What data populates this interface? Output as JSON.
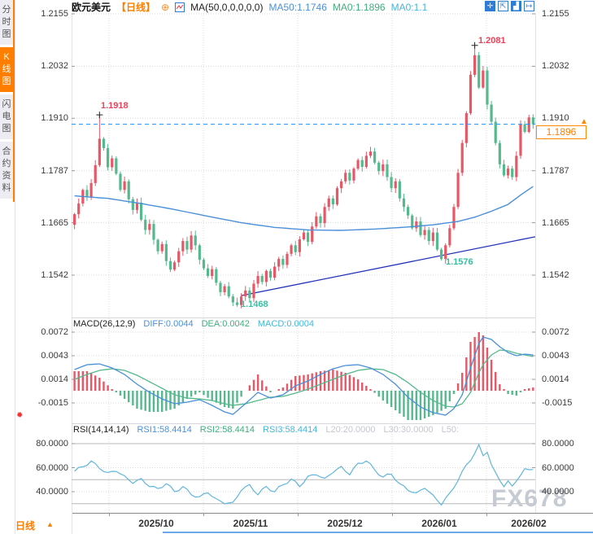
{
  "header": {
    "symbol": "欧元美元",
    "period_tag": "【日线】",
    "ma_label": "MA(50,0,0,0,0,0)",
    "ma50": "MA50:1.1746",
    "ma0_green": "MA0:1.1896",
    "ma0_cyan": "MA0:1.1"
  },
  "sidebar": {
    "items": [
      {
        "label": "分时图",
        "active": false
      },
      {
        "label": "K线图",
        "active": true
      },
      {
        "label": "闪电图",
        "active": false
      },
      {
        "label": "合约资料",
        "active": false
      }
    ]
  },
  "top_icons": [
    {
      "name": "pan-icon",
      "glyph": "✛",
      "style": "fill"
    },
    {
      "name": "zoom-range-icon",
      "glyph": "⇱",
      "style": "line"
    },
    {
      "name": "chart-mode-icon",
      "glyph": "▟",
      "style": "fill"
    },
    {
      "name": "shift-right-icon",
      "glyph": "↦",
      "style": "line"
    }
  ],
  "annotations": {
    "high1": "1.1918",
    "high2": "1.2081",
    "low1": "1.1468",
    "low2": "1.1576"
  },
  "price_badge": "1.1896",
  "macd_header": {
    "title": "MACD(26,12,9)",
    "diff": "DIFF:0.0044",
    "dea": "DEA:0.0042",
    "macd": "MACD:0.0004"
  },
  "rsi_header": {
    "title": "RSI(14,14,14)",
    "rsi1": "RSI1:58.4414",
    "rsi2": "RSI2:58.4414",
    "rsi3": "RSI3:58.4414",
    "l20": "L20:20.0000",
    "l30": "L30:30.0000",
    "l50": "L50:"
  },
  "footer": {
    "period": "日线",
    "arrow": "▲"
  },
  "watermark": "FX678",
  "colors": {
    "up": "#e75766",
    "down": "#54b98c",
    "ma50_line": "#4a90d8",
    "diff_line": "#4a90d8",
    "dea_line": "#54b98c",
    "rsi_line": "#5fb6dc",
    "trendline": "#2233bb",
    "current_price_line": "#1e90ff",
    "accent_orange": "#ff7e00",
    "annotation_red": "#e8435a",
    "annotation_green": "#3cbda0",
    "grid_dotted": "#d8d8d8",
    "level_solid": "#b8b8b8"
  },
  "chart_data": {
    "type": "candlestick",
    "symbol": "EUR/USD 欧元美元",
    "period": "daily",
    "title": "欧元美元 日线",
    "last_price": 1.1896,
    "open_first": 1.166,
    "candles_close": [
      1.1685,
      1.171,
      1.1742,
      1.1725,
      1.1758,
      1.18,
      1.1862,
      1.184,
      1.1795,
      1.1816,
      1.178,
      1.1742,
      1.1762,
      1.172,
      1.1695,
      1.1712,
      1.1672,
      1.1648,
      1.1662,
      1.1625,
      1.1598,
      1.1615,
      1.1575,
      1.1555,
      1.1572,
      1.1598,
      1.1622,
      1.1602,
      1.1635,
      1.1612,
      1.1578,
      1.1558,
      1.154,
      1.1556,
      1.1524,
      1.1502,
      1.1516,
      1.1492,
      1.1478,
      1.1472,
      1.1492,
      1.1506,
      1.1488,
      1.1522,
      1.154,
      1.1526,
      1.1552,
      1.1536,
      1.1562,
      1.158,
      1.1566,
      1.1592,
      1.1612,
      1.1596,
      1.1626,
      1.1642,
      1.162,
      1.1656,
      1.168,
      1.1664,
      1.1702,
      1.1722,
      1.1708,
      1.1746,
      1.1762,
      1.1782,
      1.1764,
      1.1792,
      1.1812,
      1.1796,
      1.1822,
      1.1832,
      1.1806,
      1.1786,
      1.1802,
      1.1772,
      1.1746,
      1.1762,
      1.1722,
      1.1702,
      1.1682,
      1.1652,
      1.1668,
      1.1636,
      1.1648,
      1.1622,
      1.1642,
      1.1602,
      1.158,
      1.1612,
      1.1652,
      1.1702,
      1.1782,
      1.1852,
      1.1922,
      1.2012,
      1.2058,
      1.1982,
      1.2022,
      1.1942,
      1.1902,
      1.1852,
      1.1802,
      1.1776,
      1.1792,
      1.1772,
      1.1822,
      1.1896,
      1.1878,
      1.1912,
      1.1896
    ],
    "extreme_overrides": {
      "6": {
        "high": 1.1918
      },
      "39": {
        "low": 1.1468
      },
      "88": {
        "low": 1.1576
      },
      "96": {
        "high": 1.2081
      }
    },
    "markers": [
      {
        "i": 6,
        "p": 1.1918
      },
      {
        "i": 96,
        "p": 1.2081
      }
    ],
    "price_axis": [
      {
        "label": "1.2155",
        "value": 1.2155
      },
      {
        "label": "1.2032",
        "value": 1.2032
      },
      {
        "label": "1.1910",
        "value": 1.191
      },
      {
        "label": "1.1787",
        "value": 1.1787
      },
      {
        "label": "1.1665",
        "value": 1.1665
      },
      {
        "label": "1.1542",
        "value": 1.1542
      }
    ],
    "ma50_points": [
      [
        0,
        1.1728
      ],
      [
        8,
        1.1722
      ],
      [
        16,
        1.171
      ],
      [
        24,
        1.1696
      ],
      [
        32,
        1.168
      ],
      [
        40,
        1.1665
      ],
      [
        48,
        1.1654
      ],
      [
        56,
        1.1648
      ],
      [
        64,
        1.1647
      ],
      [
        72,
        1.165
      ],
      [
        80,
        1.1655
      ],
      [
        86,
        1.166
      ],
      [
        92,
        1.1668
      ],
      [
        96,
        1.1678
      ],
      [
        100,
        1.1692
      ],
      [
        104,
        1.1708
      ],
      [
        107,
        1.173
      ],
      [
        110,
        1.175
      ]
    ],
    "trendline": {
      "from": [
        40,
        1.1494
      ],
      "to": [
        110,
        1.1632
      ]
    },
    "macd": {
      "axis": [
        {
          "label": "0.0072",
          "value": 0.0072
        },
        {
          "label": "0.0043",
          "value": 0.0043
        },
        {
          "label": "0.0014",
          "value": 0.0014
        },
        {
          "label": "-0.0015",
          "value": -0.0015
        }
      ],
      "diff_points": [
        [
          0,
          0.0026
        ],
        [
          3,
          0.0032
        ],
        [
          6,
          0.0033
        ],
        [
          9,
          0.0028
        ],
        [
          12,
          0.002
        ],
        [
          15,
          0.0008
        ],
        [
          18,
          -0.0002
        ],
        [
          21,
          -0.001
        ],
        [
          24,
          -0.0016
        ],
        [
          27,
          -0.0014
        ],
        [
          30,
          -0.0011
        ],
        [
          33,
          -0.0018
        ],
        [
          36,
          -0.0026
        ],
        [
          38,
          -0.0029
        ],
        [
          41,
          -0.0016
        ],
        [
          44,
          -0.0002
        ],
        [
          47,
          -0.0009
        ],
        [
          50,
          -0.0005
        ],
        [
          53,
          0.0006
        ],
        [
          56,
          0.0012
        ],
        [
          59,
          0.002
        ],
        [
          62,
          0.0027
        ],
        [
          65,
          0.0031
        ],
        [
          68,
          0.0032
        ],
        [
          71,
          0.0028
        ],
        [
          74,
          0.002
        ],
        [
          77,
          0.0008
        ],
        [
          80,
          -0.0008
        ],
        [
          83,
          -0.002
        ],
        [
          86,
          -0.0027
        ],
        [
          89,
          -0.003
        ],
        [
          91,
          -0.0022
        ],
        [
          93,
          -0.0005
        ],
        [
          95,
          0.0028
        ],
        [
          97,
          0.0058
        ],
        [
          98,
          0.0066
        ],
        [
          100,
          0.0063
        ],
        [
          102,
          0.0054
        ],
        [
          104,
          0.0047
        ],
        [
          106,
          0.0043
        ],
        [
          108,
          0.0045
        ],
        [
          110,
          0.0044
        ]
      ],
      "dea_points": [
        [
          0,
          0.0014
        ],
        [
          3,
          0.002
        ],
        [
          6,
          0.0025
        ],
        [
          9,
          0.0027
        ],
        [
          12,
          0.0025
        ],
        [
          15,
          0.0019
        ],
        [
          18,
          0.0011
        ],
        [
          21,
          0.0003
        ],
        [
          24,
          -0.0005
        ],
        [
          27,
          -0.0009
        ],
        [
          30,
          -0.001
        ],
        [
          33,
          -0.0012
        ],
        [
          36,
          -0.0016
        ],
        [
          38,
          -0.0018
        ],
        [
          41,
          -0.0016
        ],
        [
          44,
          -0.0012
        ],
        [
          47,
          -0.0008
        ],
        [
          50,
          -0.0007
        ],
        [
          53,
          -0.0003
        ],
        [
          56,
          0.0002
        ],
        [
          59,
          0.0008
        ],
        [
          62,
          0.0014
        ],
        [
          65,
          0.002
        ],
        [
          68,
          0.0025
        ],
        [
          71,
          0.0027
        ],
        [
          74,
          0.0026
        ],
        [
          77,
          0.002
        ],
        [
          80,
          0.001
        ],
        [
          83,
          -0.0002
        ],
        [
          86,
          -0.0012
        ],
        [
          89,
          -0.0019
        ],
        [
          91,
          -0.002
        ],
        [
          93,
          -0.0016
        ],
        [
          95,
          -0.0002
        ],
        [
          97,
          0.0022
        ],
        [
          98,
          0.0032
        ],
        [
          100,
          0.0044
        ],
        [
          102,
          0.005
        ],
        [
          104,
          0.0049
        ],
        [
          106,
          0.0046
        ],
        [
          108,
          0.0044
        ],
        [
          110,
          0.0042
        ]
      ]
    },
    "rsi": {
      "axis": [
        {
          "label": "80.0000",
          "value": 80
        },
        {
          "label": "60.0000",
          "value": 60
        },
        {
          "label": "40.0000",
          "value": 40
        }
      ],
      "levels_solid": [
        80,
        50,
        30
      ],
      "levels_dotted": [
        60,
        40
      ],
      "points": [
        [
          0,
          57
        ],
        [
          2,
          61
        ],
        [
          4,
          65
        ],
        [
          6,
          60
        ],
        [
          8,
          55
        ],
        [
          10,
          58
        ],
        [
          12,
          52
        ],
        [
          14,
          48
        ],
        [
          16,
          50
        ],
        [
          18,
          45
        ],
        [
          20,
          42
        ],
        [
          22,
          47
        ],
        [
          24,
          40
        ],
        [
          26,
          44
        ],
        [
          28,
          38
        ],
        [
          30,
          35
        ],
        [
          32,
          40
        ],
        [
          34,
          33
        ],
        [
          36,
          31
        ],
        [
          38,
          30
        ],
        [
          40,
          42
        ],
        [
          42,
          45
        ],
        [
          44,
          38
        ],
        [
          46,
          44
        ],
        [
          48,
          40
        ],
        [
          50,
          46
        ],
        [
          52,
          50
        ],
        [
          54,
          45
        ],
        [
          56,
          52
        ],
        [
          58,
          55
        ],
        [
          60,
          50
        ],
        [
          62,
          57
        ],
        [
          64,
          60
        ],
        [
          66,
          55
        ],
        [
          68,
          63
        ],
        [
          70,
          66
        ],
        [
          72,
          58
        ],
        [
          74,
          52
        ],
        [
          76,
          55
        ],
        [
          78,
          46
        ],
        [
          80,
          42
        ],
        [
          82,
          38
        ],
        [
          84,
          44
        ],
        [
          86,
          36
        ],
        [
          88,
          30
        ],
        [
          90,
          38
        ],
        [
          92,
          50
        ],
        [
          94,
          62
        ],
        [
          96,
          72
        ],
        [
          97,
          78
        ],
        [
          98,
          70
        ],
        [
          99,
          74
        ],
        [
          100,
          62
        ],
        [
          101,
          55
        ],
        [
          102,
          50
        ],
        [
          103,
          45
        ],
        [
          104,
          48
        ],
        [
          105,
          44
        ],
        [
          106,
          50
        ],
        [
          108,
          58
        ],
        [
          110,
          58.44
        ]
      ]
    },
    "time_axis": [
      "2025/10",
      "2025/11",
      "2025/12",
      "2026/01",
      "2026/02"
    ]
  }
}
